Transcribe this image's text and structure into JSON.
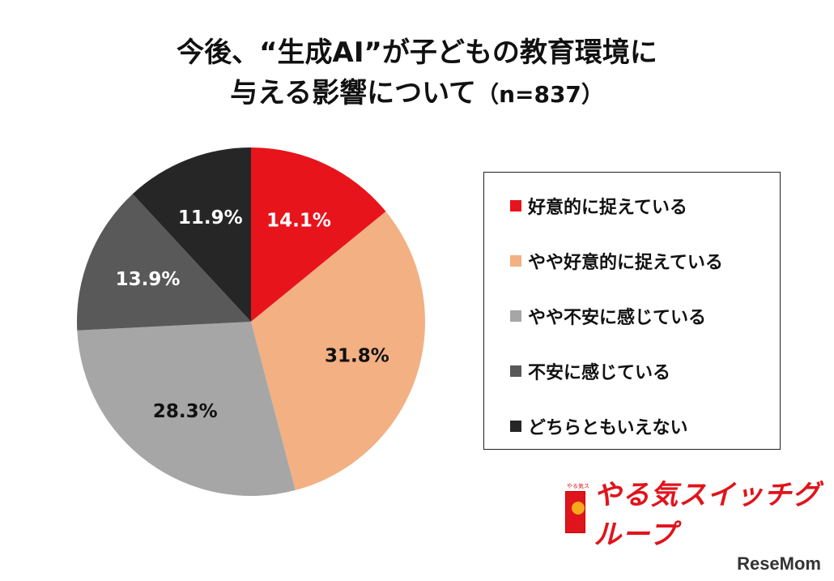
{
  "chart_data": {
    "type": "pie",
    "title_line1": "今後、“生成AI”が子どもの教育環境に",
    "title_line2": "与える影響について",
    "title_n": "（n=837）",
    "slices": [
      {
        "label": "好意的に捉えている",
        "value": 14.1,
        "display": "14.1%",
        "color": "#e8141c",
        "text_color": "#ffffff"
      },
      {
        "label": "やや好意的に捉えている",
        "value": 31.8,
        "display": "31.8%",
        "color": "#f3b083",
        "text_color": "#111111"
      },
      {
        "label": "やや不安に感じている",
        "value": 28.3,
        "display": "28.3%",
        "color": "#a6a6a6",
        "text_color": "#111111"
      },
      {
        "label": "不安に感じている",
        "value": 13.9,
        "display": "13.9%",
        "color": "#595959",
        "text_color": "#ffffff"
      },
      {
        "label": "どちらともいえない",
        "value": 11.9,
        "display": "11.9%",
        "color": "#262626",
        "text_color": "#ffffff"
      }
    ],
    "legend_position": "right"
  },
  "branding": {
    "logo_text": "やる気スイッチグループ",
    "logo_small": "やる気スイッチ",
    "watermark": "ReseMom"
  }
}
